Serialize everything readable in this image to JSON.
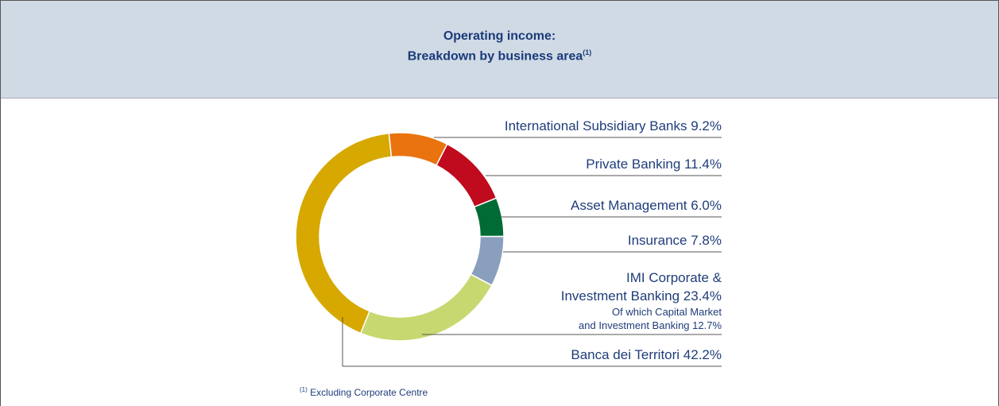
{
  "chart_data": {
    "type": "donut",
    "title": "Operating income:\nBreakdown by business area",
    "title_note": "(1)",
    "categories": [
      "International Subsidiary Banks",
      "Private Banking",
      "Asset Management",
      "Insurance",
      "IMI Corporate &\nInvestment Banking",
      "Banca dei Territori"
    ],
    "values": [
      9.2,
      11.4,
      6.0,
      7.8,
      23.4,
      42.2
    ],
    "value_labels": [
      "9.2%",
      "11.4%",
      "6.0%",
      "7.8%",
      "23.4%",
      "42.2%"
    ],
    "colors": [
      "#e8730f",
      "#c00a1e",
      "#006b35",
      "#8a9fbd",
      "#c8d870",
      "#d6a800"
    ],
    "annotation": "Of which Capital Market\nand Investment Banking 12.7%",
    "footnote": {
      "marker": "(1)",
      "text": "Excluding Corporate Centre"
    }
  }
}
